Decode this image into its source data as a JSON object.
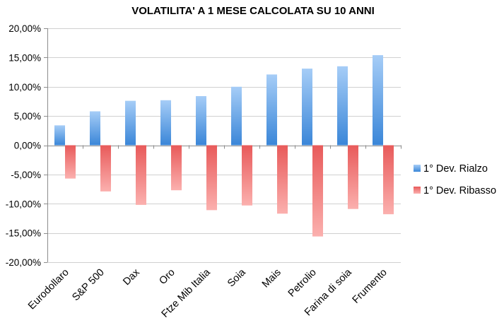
{
  "chart_data": {
    "type": "bar",
    "title": "VOLATILITA' A 1 MESE  CALCOLATA SU 10 ANNI",
    "xlabel": "",
    "ylabel": "",
    "categories": [
      "Eurodollaro",
      "S&P 500",
      "Dax",
      "Oro",
      "Ftze Mib Italia",
      "Soia",
      "Mais",
      "Petrolio",
      "Farina di soia",
      "Frumento"
    ],
    "series": [
      {
        "name": "1° Dev. Rialzo",
        "values": [
          3.4,
          5.8,
          7.6,
          7.7,
          8.4,
          10.0,
          12.1,
          13.1,
          13.5,
          15.4
        ],
        "color_top": "#a6cdf7",
        "color_bottom": "#3a86d8"
      },
      {
        "name": "1° Dev. Ribasso",
        "values": [
          -5.7,
          -7.9,
          -10.2,
          -7.7,
          -11.1,
          -10.3,
          -11.7,
          -15.6,
          -10.9,
          -11.8
        ],
        "color_top": "#e85a5a",
        "color_bottom": "#fbb0ae"
      }
    ],
    "ylim": [
      -20,
      20
    ],
    "yticks": [
      20,
      15,
      10,
      5,
      0,
      -5,
      -10,
      -15,
      -20
    ],
    "ytick_labels": [
      "20,00%",
      "15,00%",
      "10,00%",
      "5,00%",
      "0,00%",
      "-5,00%",
      "-10,00%",
      "-15,00%",
      "-20,00%"
    ],
    "grid": true,
    "legend_position": "right"
  }
}
